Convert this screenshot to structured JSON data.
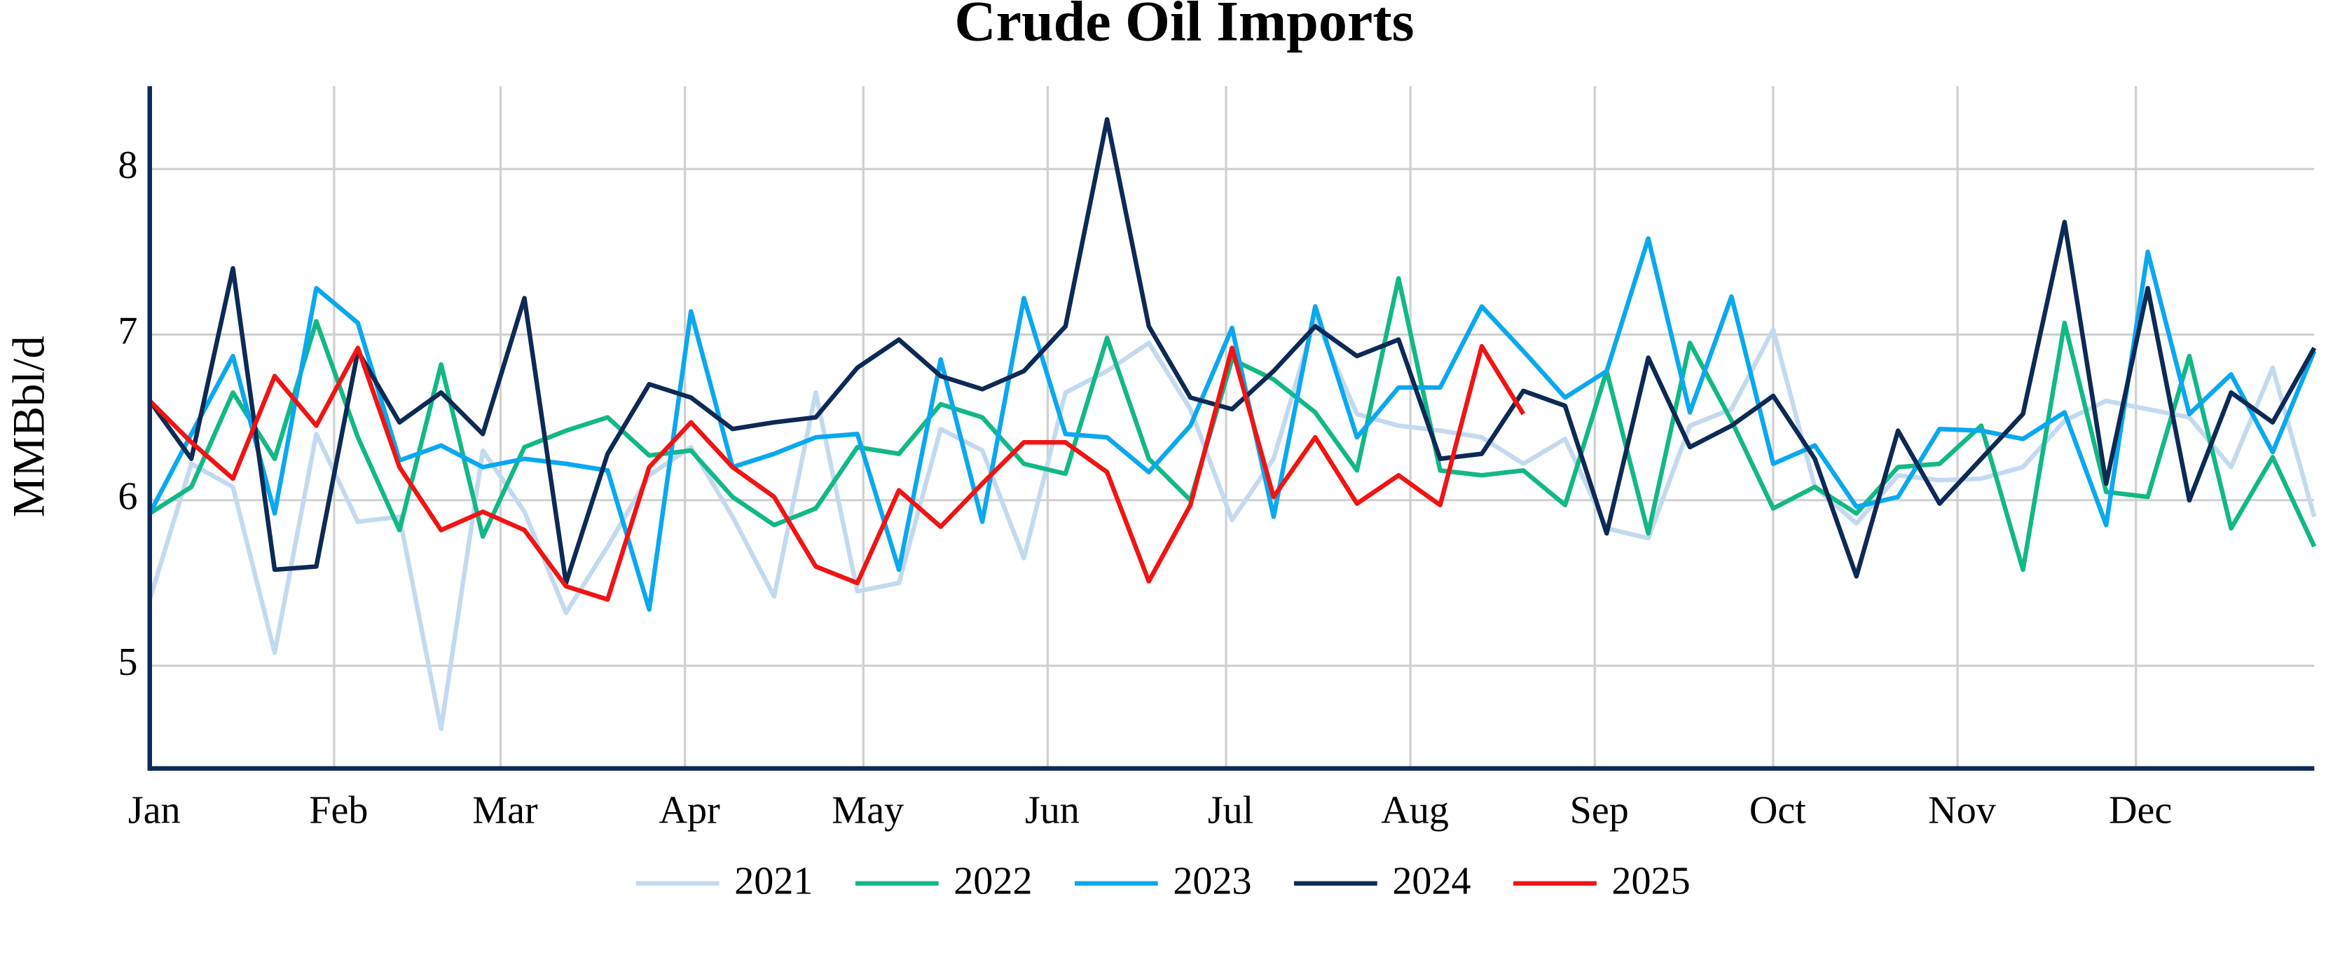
{
  "chart_data": {
    "type": "line",
    "title": "Crude Oil Imports",
    "y_label": "MMBbl/d",
    "x": [
      1,
      8,
      15,
      22,
      29,
      36,
      43,
      50,
      57,
      64,
      71,
      78,
      85,
      92,
      99,
      106,
      113,
      120,
      127,
      134,
      141,
      148,
      155,
      162,
      169,
      176,
      183,
      190,
      197,
      204,
      211,
      218,
      225,
      232,
      239,
      246,
      253,
      260,
      267,
      274,
      281,
      288,
      295,
      302,
      309,
      316,
      323,
      330,
      337,
      344,
      351,
      358,
      365
    ],
    "xlim": [
      1,
      365
    ],
    "xticks": [
      {
        "value": 1,
        "label": "Jan"
      },
      {
        "value": 32,
        "label": "Feb"
      },
      {
        "value": 60,
        "label": "Mar"
      },
      {
        "value": 91,
        "label": "Apr"
      },
      {
        "value": 121,
        "label": "May"
      },
      {
        "value": 152,
        "label": "Jun"
      },
      {
        "value": 182,
        "label": "Jul"
      },
      {
        "value": 213,
        "label": "Aug"
      },
      {
        "value": 244,
        "label": "Sep"
      },
      {
        "value": 274,
        "label": "Oct"
      },
      {
        "value": 305,
        "label": "Nov"
      },
      {
        "value": 335,
        "label": "Dec"
      }
    ],
    "ylim": [
      4.38,
      8.5
    ],
    "yticks": [
      5,
      6,
      7,
      8
    ],
    "grid": true,
    "legend": "bottom",
    "series": [
      {
        "name": "2021",
        "color": "#c3d9ef",
        "values": [
          5.4,
          6.22,
          6.08,
          5.08,
          6.4,
          5.87,
          5.9,
          4.62,
          6.3,
          5.93,
          5.32,
          5.72,
          6.15,
          6.32,
          5.9,
          5.42,
          6.65,
          5.45,
          5.5,
          6.43,
          6.3,
          5.65,
          6.65,
          6.78,
          6.95,
          6.55,
          5.88,
          6.25,
          7.1,
          6.52,
          6.45,
          6.42,
          6.38,
          6.22,
          6.37,
          5.83,
          5.77,
          6.45,
          6.55,
          7.03,
          6.08,
          5.86,
          6.15,
          6.12,
          6.13,
          6.2,
          6.48,
          6.6,
          6.55,
          6.5,
          6.2,
          6.8,
          5.9
        ]
      },
      {
        "name": "2022",
        "color": "#12b886",
        "values": [
          5.92,
          6.08,
          6.65,
          6.25,
          7.08,
          6.38,
          5.82,
          6.82,
          5.78,
          6.32,
          6.42,
          6.5,
          6.27,
          6.3,
          6.02,
          5.85,
          5.95,
          6.32,
          6.28,
          6.58,
          6.5,
          6.22,
          6.16,
          6.98,
          6.25,
          6.0,
          6.85,
          6.73,
          6.53,
          6.18,
          7.34,
          6.18,
          6.15,
          6.18,
          5.97,
          6.78,
          5.8,
          6.95,
          6.48,
          5.95,
          6.08,
          5.92,
          6.2,
          6.22,
          6.45,
          5.58,
          7.07,
          6.05,
          6.02,
          6.87,
          5.83,
          6.26,
          5.72
        ]
      },
      {
        "name": "2023",
        "color": "#0aa8ef",
        "values": [
          5.92,
          6.4,
          6.87,
          5.92,
          7.28,
          7.07,
          6.24,
          6.33,
          6.2,
          6.25,
          6.22,
          6.18,
          5.34,
          7.14,
          6.2,
          6.28,
          6.38,
          6.4,
          5.58,
          6.85,
          5.87,
          7.22,
          6.4,
          6.38,
          6.17,
          6.45,
          7.04,
          5.9,
          7.17,
          6.38,
          6.68,
          6.68,
          7.17,
          6.9,
          6.62,
          6.78,
          7.58,
          6.53,
          7.23,
          6.22,
          6.33,
          5.96,
          6.02,
          6.43,
          6.42,
          6.37,
          6.53,
          5.85,
          7.5,
          6.52,
          6.76,
          6.29,
          6.9
        ]
      },
      {
        "name": "2024",
        "color": "#0c2a55",
        "values": [
          6.6,
          6.25,
          7.4,
          5.58,
          5.6,
          6.9,
          6.47,
          6.65,
          6.4,
          7.22,
          5.5,
          6.28,
          6.7,
          6.62,
          6.43,
          6.47,
          6.5,
          6.8,
          6.97,
          6.75,
          6.67,
          6.78,
          7.05,
          8.3,
          7.05,
          6.62,
          6.55,
          6.78,
          7.05,
          6.87,
          6.97,
          6.25,
          6.28,
          6.66,
          6.57,
          5.8,
          6.86,
          6.32,
          6.45,
          6.63,
          6.25,
          5.54,
          6.42,
          5.98,
          6.25,
          6.52,
          7.68,
          6.1,
          7.28,
          6.0,
          6.65,
          6.47,
          6.92
        ]
      },
      {
        "name": "2025",
        "color": "#f01414",
        "values": [
          6.6,
          6.35,
          6.13,
          6.75,
          6.45,
          6.92,
          6.2,
          5.82,
          5.93,
          5.82,
          5.48,
          5.4,
          6.2,
          6.47,
          6.2,
          6.02,
          5.6,
          5.5,
          6.06,
          5.84,
          6.1,
          6.35,
          6.35,
          6.17,
          5.51,
          5.97,
          6.92,
          6.02,
          6.38,
          5.98,
          6.15,
          5.97,
          6.93,
          6.52,
          null,
          null,
          null,
          null,
          null,
          null,
          null,
          null,
          null,
          null,
          null,
          null,
          null,
          null,
          null,
          null,
          null,
          null,
          null
        ]
      }
    ]
  }
}
